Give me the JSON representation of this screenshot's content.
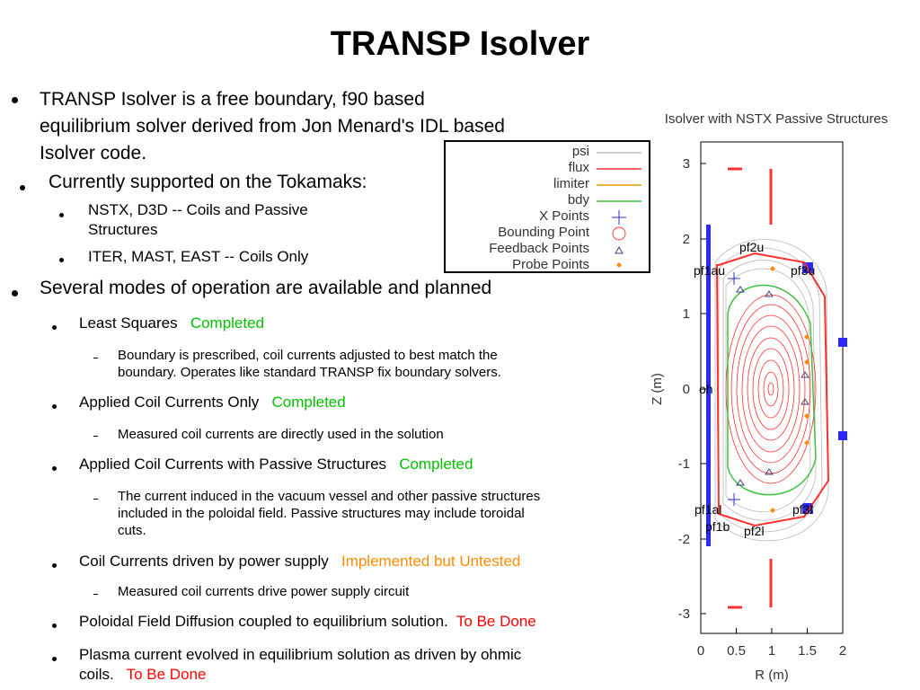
{
  "slide": {
    "title": "TRANSP Isolver",
    "bullets": {
      "b1_line1": "TRANSP Isolver is a free boundary, f90 based",
      "b1_line2": "equilibrium solver derived from Jon Menard's IDL based",
      "b1_line3": "Isolver code.",
      "b2": "Currently supported on the Tokamaks:",
      "b2_sub1_line1": "NSTX, D3D -- Coils and Passive",
      "b2_sub1_line2": "Structures",
      "b2_sub2": "ITER, MAST, EAST -- Coils Only",
      "b3": "Several modes of operation are available and planned",
      "m1_label": "Least Squares",
      "m1_status": "Completed",
      "m1_desc_line1": "Boundary is prescribed, coil currents adjusted to best match the",
      "m1_desc_line2": "boundary.  Operates like standard TRANSP fix boundary solvers.",
      "m2_label": "Applied Coil Currents Only",
      "m2_status": "Completed",
      "m2_desc": "Measured coil currents are directly used in the solution",
      "m3_label": "Applied Coil Currents with Passive Structures",
      "m3_status": "Completed",
      "m3_desc_line1": "The current induced in the vacuum vessel and other passive structures",
      "m3_desc_line2": "included in the poloidal field.  Passive structures may include toroidal",
      "m3_desc_line3": "cuts.",
      "m4_label": "Coil Currents driven by power supply",
      "m4_status": "Implemented but Untested",
      "m4_desc": "Measured coil currents drive power supply circuit",
      "m5_label": "Poloidal Field Diffusion coupled to equilibrium solution.",
      "m5_status": "To Be Done",
      "m6_line1": "Plasma current evolved in equilibrium solution as driven by ohmic",
      "m6_line2": "coils.",
      "m6_status": "To Be Done"
    }
  },
  "legend": {
    "psi": "psi",
    "flux": "flux",
    "limiter": "limiter",
    "bdy": "bdy",
    "xpoints": "X Points",
    "bounding": "Bounding Point",
    "feedback": "Feedback Points",
    "probe": "Probe Points",
    "colors": {
      "psi": "#bbbbbb",
      "flux": "#ff3030",
      "limiter": "#e0a000",
      "bdy": "#40c040",
      "xpoints": "#3030c0",
      "bounding": "#ff4040",
      "feedback": "#404080",
      "probe": "#ff8c00"
    }
  },
  "plot": {
    "title": "Isolver with NSTX Passive Structures",
    "xlabel": "R (m)",
    "ylabel": "Z (m)",
    "xticks": [
      "0",
      "0.5",
      "1",
      "1.5",
      "2"
    ],
    "yticks": [
      "3",
      "2",
      "1",
      "0",
      "-1",
      "-2",
      "-3"
    ],
    "coil_labels": {
      "pf2u": "pf2u",
      "pf1au": "pf1au",
      "pf3u": "pf3u",
      "oh": "oh",
      "pf1al": "pf1al",
      "pf1b": "pf1b",
      "pf3l": "pf3l",
      "pf2l": "pf2l"
    }
  }
}
